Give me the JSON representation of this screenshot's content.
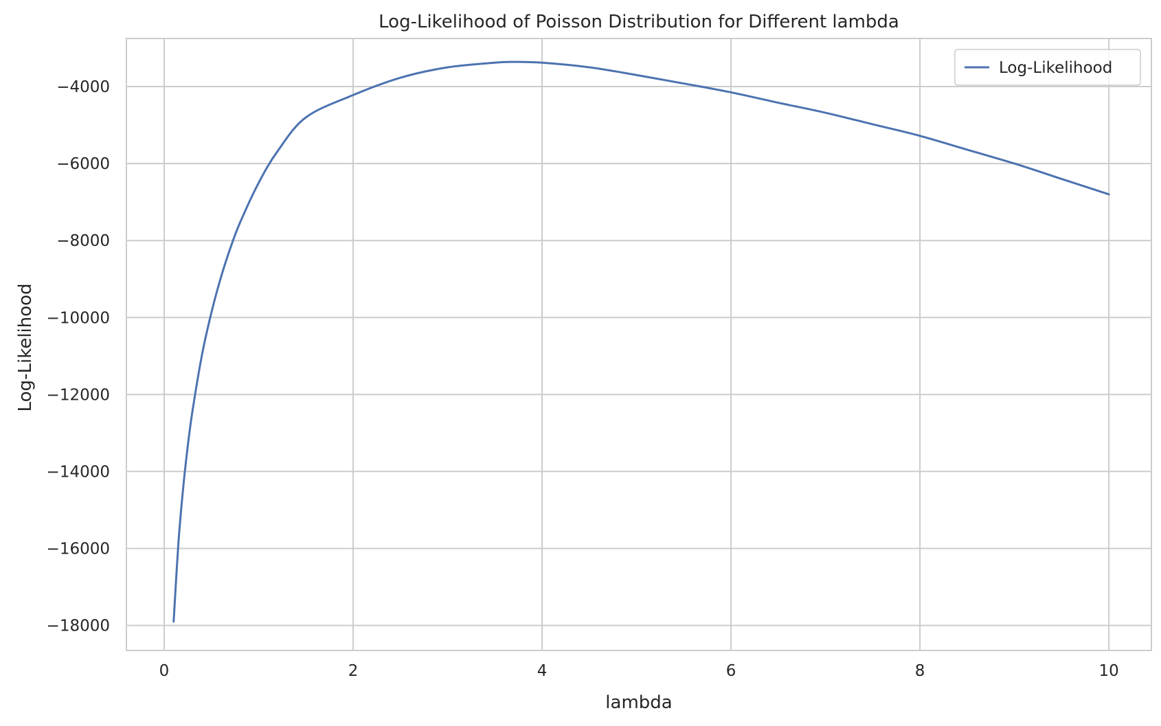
{
  "chart_data": {
    "type": "line",
    "title": "Log-Likelihood of Poisson Distribution for Different lambda",
    "xlabel": "lambda",
    "ylabel": "Log-Likelihood",
    "xlim": [
      -0.4,
      10.45
    ],
    "ylim": [
      -18650,
      -2750
    ],
    "xticks": [
      0,
      2,
      4,
      6,
      8,
      10
    ],
    "xtick_labels": [
      "0",
      "2",
      "4",
      "6",
      "8",
      "10"
    ],
    "yticks": [
      -18000,
      -16000,
      -14000,
      -12000,
      -10000,
      -8000,
      -6000,
      -4000
    ],
    "ytick_labels": [
      "−18000",
      "−16000",
      "−14000",
      "−12000",
      "−10000",
      "−8000",
      "−6000",
      "−4000"
    ],
    "grid": true,
    "legend": {
      "position": "top-right",
      "entries": [
        "Log-Likelihood"
      ]
    },
    "series": [
      {
        "name": "Log-Likelihood",
        "color": "#4c72b0",
        "x": [
          0.1,
          0.15,
          0.2,
          0.25,
          0.3,
          0.4,
          0.5,
          0.6,
          0.7,
          0.8,
          1.0,
          1.2,
          1.5,
          2.0,
          2.5,
          3.0,
          3.5,
          3.7,
          4.0,
          4.5,
          5.0,
          5.5,
          6.0,
          6.5,
          7.0,
          7.5,
          8.0,
          8.5,
          9.0,
          9.5,
          10.0
        ],
        "y": [
          -17900,
          -15880,
          -14450,
          -13330,
          -12420,
          -10970,
          -9870,
          -8960,
          -8200,
          -7550,
          -6500,
          -5680,
          -4800,
          -4220,
          -3770,
          -3500,
          -3380,
          -3360,
          -3380,
          -3500,
          -3700,
          -3920,
          -4150,
          -4420,
          -4680,
          -4980,
          -5280,
          -5640,
          -6000,
          -6400,
          -6800
        ]
      }
    ]
  }
}
